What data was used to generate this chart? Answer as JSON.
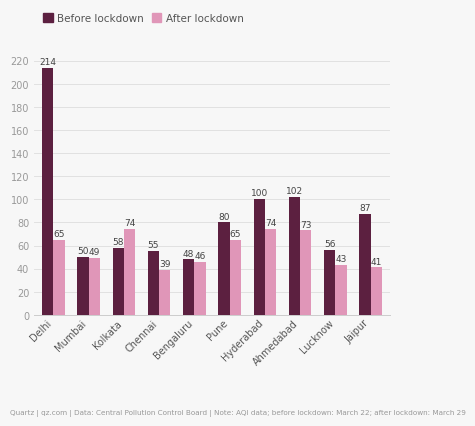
{
  "cities": [
    "Delhi",
    "Mumbai",
    "Kolkata",
    "Chennai",
    "Bengaluru",
    "Pune",
    "Hyderabad",
    "Ahmedabad",
    "Lucknow",
    "Jaipur"
  ],
  "before": [
    214,
    50,
    58,
    55,
    48,
    80,
    100,
    102,
    56,
    87
  ],
  "after": [
    65,
    49,
    74,
    39,
    46,
    65,
    74,
    73,
    43,
    41
  ],
  "before_color": "#5c2040",
  "after_color": "#e096b8",
  "background_color": "#f7f7f7",
  "legend_before": "Before lockdown",
  "legend_after": "After lockdown",
  "footer": "Quartz | qz.com | Data: Central Pollution Control Board | Note: AQI data; before lockdown: March 22; after lockdown: March 29",
  "ylim": [
    0,
    228
  ],
  "yticks": [
    0,
    20,
    40,
    60,
    80,
    100,
    120,
    140,
    160,
    180,
    200,
    220
  ],
  "bar_width": 0.32,
  "value_fontsize": 6.5,
  "tick_fontsize": 7.0,
  "legend_fontsize": 7.5,
  "footer_fontsize": 5.2
}
